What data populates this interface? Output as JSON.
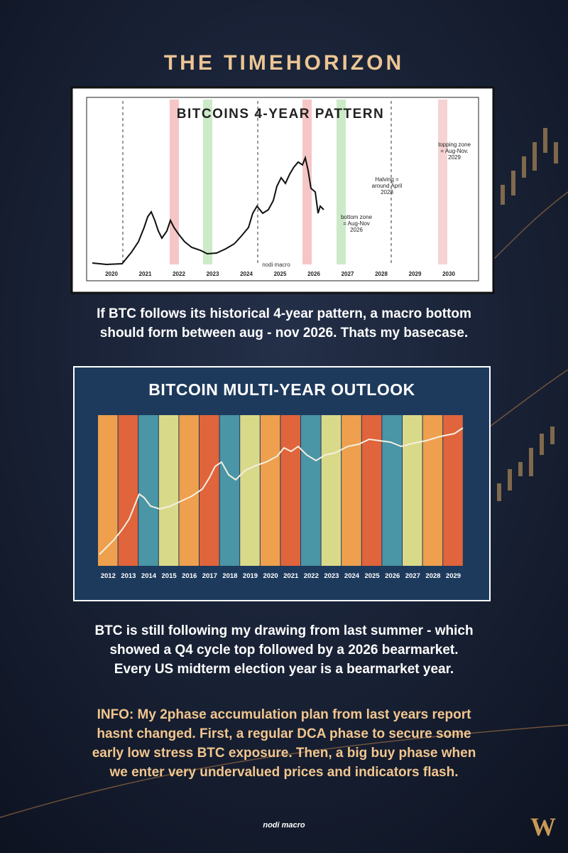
{
  "header": {
    "title": "THE TIMEHORIZON"
  },
  "figure1": {
    "title": "BITCOINS 4-YEAR PATTERN",
    "years": [
      "2020",
      "2021",
      "2022",
      "2023",
      "2024",
      "2025",
      "2026",
      "2027",
      "2028",
      "2029",
      "2030"
    ],
    "annotations": [
      {
        "lines": [
          "topping zone",
          "= Aug-Nov.",
          "2029"
        ]
      },
      {
        "lines": [
          "Halving =",
          "around April",
          "2028"
        ]
      },
      {
        "lines": [
          "bottom zone",
          "= Aug-Nov",
          "2026"
        ]
      }
    ],
    "watermark": "nodi macro"
  },
  "caption1": {
    "lines": [
      "If BTC follows its historical 4-year pattern, a macro bottom",
      "should form between aug - nov 2026. Thats my basecase."
    ]
  },
  "figure2": {
    "title": "BITCOIN MULTI-YEAR OUTLOOK",
    "years": [
      "2012",
      "2013",
      "2014",
      "2015",
      "2016",
      "2017",
      "2018",
      "2019",
      "2020",
      "2021",
      "2022",
      "2023",
      "2024",
      "2025",
      "2026",
      "2027",
      "2028",
      "2029"
    ]
  },
  "caption2": {
    "lines": [
      "BTC is still following my drawing from last summer - which",
      "showed a Q4 cycle top followed by a 2026 bearmarket.",
      "Every US midterm election year is a bearmarket year."
    ]
  },
  "info": {
    "lines": [
      "INFO: My 2phase accumulation plan from last years report",
      "hasnt changed. First, a regular DCA phase to secure some",
      "early low stress BTC exposure. Then, a big buy phase when",
      "we enter very undervalued prices and indicators flash."
    ]
  },
  "footer": {
    "credit": "nodi macro",
    "logo": "W"
  }
}
